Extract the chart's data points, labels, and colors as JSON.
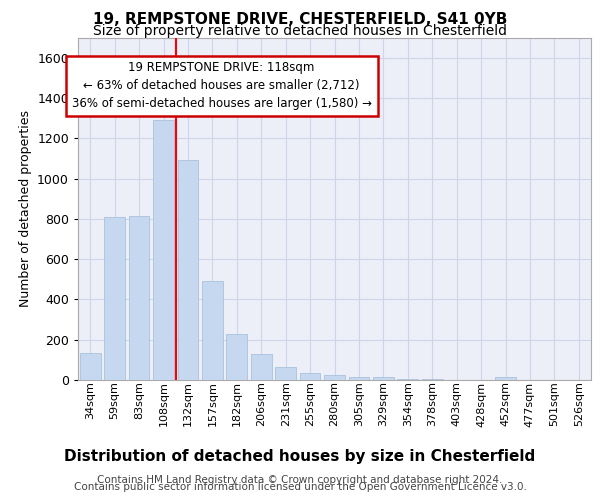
{
  "title1": "19, REMPSTONE DRIVE, CHESTERFIELD, S41 0YB",
  "title2": "Size of property relative to detached houses in Chesterfield",
  "xlabel": "Distribution of detached houses by size in Chesterfield",
  "ylabel": "Number of detached properties",
  "footer1": "Contains HM Land Registry data © Crown copyright and database right 2024.",
  "footer2": "Contains public sector information licensed under the Open Government Licence v3.0.",
  "annotation_line1": "19 REMPSTONE DRIVE: 118sqm",
  "annotation_line2": "← 63% of detached houses are smaller (2,712)",
  "annotation_line3": "36% of semi-detached houses are larger (1,580) →",
  "bar_values": [
    135,
    810,
    815,
    1290,
    1090,
    490,
    230,
    130,
    65,
    35,
    25,
    15,
    15,
    5,
    5,
    0,
    0,
    15,
    0,
    0,
    0
  ],
  "categories": [
    "34sqm",
    "59sqm",
    "83sqm",
    "108sqm",
    "132sqm",
    "157sqm",
    "182sqm",
    "206sqm",
    "231sqm",
    "255sqm",
    "280sqm",
    "305sqm",
    "329sqm",
    "354sqm",
    "378sqm",
    "403sqm",
    "428sqm",
    "452sqm",
    "477sqm",
    "501sqm",
    "526sqm"
  ],
  "bar_color": "#c5d8f0",
  "bar_edge_color": "#a0bcd8",
  "vline_x": 3.5,
  "ylim": [
    0,
    1700
  ],
  "yticks": [
    0,
    200,
    400,
    600,
    800,
    1000,
    1200,
    1400,
    1600
  ],
  "grid_color": "#d0d4e8",
  "bg_color": "#eceef8",
  "annotation_box_color": "#ffffff",
  "annotation_box_edge": "#cc0000",
  "title1_fontsize": 11,
  "title2_fontsize": 10,
  "xlabel_fontsize": 11,
  "ylabel_fontsize": 9,
  "footer_fontsize": 7.5,
  "tick_fontsize": 8,
  "annot_fontsize": 8.5
}
